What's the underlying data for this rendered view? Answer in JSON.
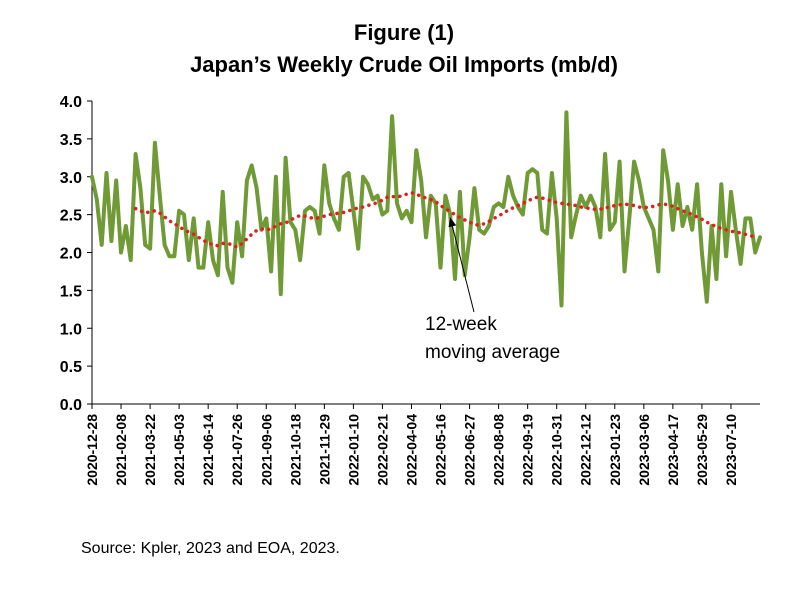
{
  "figure": {
    "title": "Figure (1)",
    "subtitle": "Japan’s Weekly Crude Oil Imports (mb/d)",
    "source": "Source: Kpler, 2023 and EOA, 2023."
  },
  "colors": {
    "series": "#6f9a35",
    "moving_average": "#e0201c",
    "axis": "#000000"
  },
  "chart_data": {
    "type": "line",
    "ylim": [
      0,
      4.0
    ],
    "yticks": [
      "0.0",
      "0.5",
      "1.0",
      "1.5",
      "2.0",
      "2.5",
      "3.0",
      "3.5",
      "4.0"
    ],
    "x_start": "2020-12-28",
    "x_interval_days": 7,
    "xticks": [
      "2020-12-28",
      "2021-02-08",
      "2021-03-22",
      "2021-05-03",
      "2021-06-14",
      "2021-07-26",
      "2021-09-06",
      "2021-10-18",
      "2021-11-29",
      "2022-01-10",
      "2022-02-21",
      "2022-04-04",
      "2022-05-16",
      "2022-06-27",
      "2022-08-08",
      "2022-09-19",
      "2022-10-31",
      "2022-12-12",
      "2023-01-23",
      "2023-03-06",
      "2023-04-17",
      "2023-05-29",
      "2023-07-10"
    ],
    "grid": false,
    "series": [
      {
        "values": [
          3.0,
          2.7,
          2.1,
          3.05,
          2.15,
          2.95,
          2.0,
          2.35,
          1.9,
          3.3,
          2.85,
          2.1,
          2.05,
          3.45,
          2.75,
          2.1,
          1.95,
          1.95,
          2.55,
          2.5,
          1.9,
          2.45,
          1.8,
          1.8,
          2.4,
          1.9,
          1.7,
          2.8,
          1.8,
          1.6,
          2.4,
          1.95,
          2.95,
          3.15,
          2.85,
          2.3,
          2.45,
          1.75,
          3.0,
          1.45,
          3.25,
          2.4,
          2.3,
          1.9,
          2.55,
          2.6,
          2.55,
          2.25,
          3.15,
          2.65,
          2.45,
          2.3,
          3.0,
          3.05,
          2.55,
          2.05,
          3.0,
          2.9,
          2.7,
          2.75,
          2.5,
          2.55,
          3.8,
          2.65,
          2.45,
          2.55,
          2.4,
          3.35,
          2.95,
          2.2,
          2.75,
          2.65,
          1.8,
          2.75,
          2.5,
          1.65,
          2.8,
          1.7,
          2.2,
          2.85,
          2.3,
          2.25,
          2.35,
          2.6,
          2.65,
          2.6,
          3.0,
          2.75,
          2.6,
          2.5,
          3.05,
          3.1,
          3.05,
          2.3,
          2.25,
          3.05,
          2.45,
          1.3,
          3.85,
          2.2,
          2.5,
          2.75,
          2.6,
          2.75,
          2.6,
          2.2,
          3.3,
          2.3,
          2.4,
          3.2,
          1.75,
          2.45,
          3.2,
          2.95,
          2.6,
          2.45,
          2.3,
          1.75,
          3.35,
          2.95,
          2.3,
          2.9,
          2.35,
          2.6,
          2.3,
          2.9,
          2.0,
          1.35,
          2.35,
          1.65,
          2.9,
          1.95,
          2.8,
          2.3,
          1.85,
          2.45,
          2.45,
          2.0,
          2.2
        ]
      },
      {
        "name": "12-week moving average",
        "start_index": 9,
        "values": [
          2.58,
          2.55,
          2.52,
          2.54,
          2.55,
          2.52,
          2.47,
          2.42,
          2.38,
          2.34,
          2.3,
          2.27,
          2.24,
          2.2,
          2.16,
          2.13,
          2.1,
          2.09,
          2.12,
          2.12,
          2.1,
          2.07,
          2.12,
          2.18,
          2.24,
          2.29,
          2.31,
          2.3,
          2.31,
          2.35,
          2.38,
          2.39,
          2.43,
          2.46,
          2.49,
          2.48,
          2.46,
          2.45,
          2.46,
          2.48,
          2.5,
          2.51,
          2.52,
          2.53,
          2.55,
          2.57,
          2.59,
          2.6,
          2.62,
          2.64,
          2.66,
          2.69,
          2.73,
          2.74,
          2.73,
          2.75,
          2.77,
          2.79,
          2.77,
          2.74,
          2.72,
          2.7,
          2.67,
          2.62,
          2.58,
          2.54,
          2.5,
          2.46,
          2.43,
          2.4,
          2.37,
          2.36,
          2.38,
          2.41,
          2.45,
          2.48,
          2.52,
          2.56,
          2.59,
          2.62,
          2.65,
          2.68,
          2.71,
          2.73,
          2.72,
          2.7,
          2.68,
          2.66,
          2.65,
          2.64,
          2.63,
          2.62,
          2.6,
          2.59,
          2.58,
          2.57,
          2.57,
          2.59,
          2.6,
          2.62,
          2.63,
          2.64,
          2.63,
          2.62,
          2.6,
          2.59,
          2.6,
          2.61,
          2.63,
          2.64,
          2.63,
          2.61,
          2.58,
          2.55,
          2.53,
          2.5,
          2.47,
          2.44,
          2.4,
          2.37,
          2.34,
          2.32,
          2.3,
          2.28,
          2.27,
          2.26,
          2.24,
          2.22,
          2.21
        ]
      }
    ],
    "annotation": {
      "lines": [
        "12-week",
        "moving average"
      ],
      "points_to_index": 74
    }
  }
}
